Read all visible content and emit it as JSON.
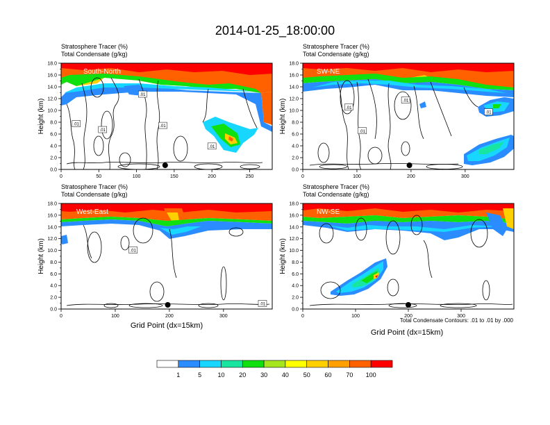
{
  "figure": {
    "title": "2014-01-25_18:00:00",
    "contour_note": "Total Condensate Contours: .01 to .01 by .000"
  },
  "colors": {
    "levels": [
      "#ffffff",
      "#2a8cff",
      "#17d6ff",
      "#18e6a0",
      "#10e010",
      "#a6e61c",
      "#ffff00",
      "#ffd000",
      "#ffa000",
      "#ff6000",
      "#ff0000"
    ],
    "contour": "#000000",
    "marker": "#000000"
  },
  "colorbar": {
    "labels": [
      "1",
      "5",
      "10",
      "20",
      "30",
      "40",
      "50",
      "60",
      "70",
      "100"
    ]
  },
  "chart_data": [
    {
      "type": "heatmap",
      "panel": "South-North",
      "label": "South-North",
      "subtitle_line1": "Stratosphere Tracer   (%)",
      "subtitle_line2": "Total Condensate   (g/kg)",
      "ylabel": "Height (km)",
      "xlabel": "",
      "xlim": [
        0,
        280
      ],
      "ylim": [
        0,
        18
      ],
      "xticks": [
        "0",
        "50",
        "100",
        "150",
        "200",
        "250"
      ],
      "xtick_values": [
        0,
        50,
        100,
        150,
        200,
        250
      ],
      "yticks": [
        "0.0",
        "2.0",
        "4.0",
        "6.0",
        "8.0",
        "10.0",
        "12.0",
        "14.0",
        "16.0",
        "18.0"
      ],
      "marker_x": 138,
      "contour_labels": [
        {
          "text": ".01",
          "x": 108,
          "y": 12.7
        },
        {
          "text": ".01",
          "x": 20,
          "y": 7.7
        },
        {
          "text": ".01",
          "x": 55,
          "y": 6.7
        },
        {
          "text": ".01",
          "x": 135,
          "y": 7.4
        },
        {
          "text": ".01",
          "x": 200,
          "y": 3.9
        }
      ]
    },
    {
      "type": "heatmap",
      "panel": "SW-NE",
      "label": "SW-NE",
      "subtitle_line1": "Stratosphere Tracer   (%)",
      "subtitle_line2": "Total Condensate   (g/kg)",
      "ylabel": "Height (km)",
      "xlabel": "",
      "xlim": [
        0,
        390
      ],
      "ylim": [
        0,
        18
      ],
      "xticks": [
        "0",
        "100",
        "200",
        "300"
      ],
      "xtick_values": [
        0,
        100,
        200,
        300
      ],
      "yticks": [
        "0.0",
        "2.0",
        "4.0",
        "6.0",
        "8.0",
        "10.0",
        "12.0",
        "14.0",
        "16.0",
        "18.0"
      ],
      "marker_x": 197,
      "contour_labels": [
        {
          "text": ".01",
          "x": 85,
          "y": 10.5
        },
        {
          "text": ".01",
          "x": 190,
          "y": 11.7
        },
        {
          "text": ".01",
          "x": 110,
          "y": 6.5
        },
        {
          "text": ".01",
          "x": 343,
          "y": 9.7
        }
      ]
    },
    {
      "type": "heatmap",
      "panel": "West-East",
      "label": "West-East",
      "subtitle_line1": "Stratosphere Tracer   (%)",
      "subtitle_line2": "Total Condensate   (g/kg)",
      "ylabel": "Height (km)",
      "xlabel": "Grid Point (dx=15km)",
      "xlim": [
        0,
        390
      ],
      "ylim": [
        0,
        18
      ],
      "xticks": [
        "0",
        "100",
        "200",
        "300"
      ],
      "xtick_values": [
        0,
        100,
        200,
        300
      ],
      "yticks": [
        "0.0",
        "2.0",
        "4.0",
        "6.0",
        "8.0",
        "10.0",
        "12.0",
        "14.0",
        "16.0",
        "18.0"
      ],
      "marker_x": 197,
      "contour_labels": [
        {
          "text": ".01",
          "x": 133,
          "y": 10.0
        },
        {
          "text": ".01",
          "x": 372,
          "y": 0.9
        }
      ]
    },
    {
      "type": "heatmap",
      "panel": "NW-SE",
      "label": "NW-SE",
      "subtitle_line1": "Stratosphere Tracer   (%)",
      "subtitle_line2": "Total Condensate   (g/kg)",
      "ylabel": "Height (km)",
      "xlabel": "Grid Point (dx=15km)",
      "xlim": [
        0,
        400
      ],
      "ylim": [
        0,
        18
      ],
      "xticks": [
        "0",
        "100",
        "200",
        "300"
      ],
      "xtick_values": [
        0,
        100,
        200,
        300
      ],
      "yticks": [
        "0.0",
        "2.0",
        "4.0",
        "6.0",
        "8.0",
        "10.0",
        "12.0",
        "14.0",
        "16.0",
        "18.0"
      ],
      "marker_x": 200,
      "contour_labels": []
    }
  ]
}
